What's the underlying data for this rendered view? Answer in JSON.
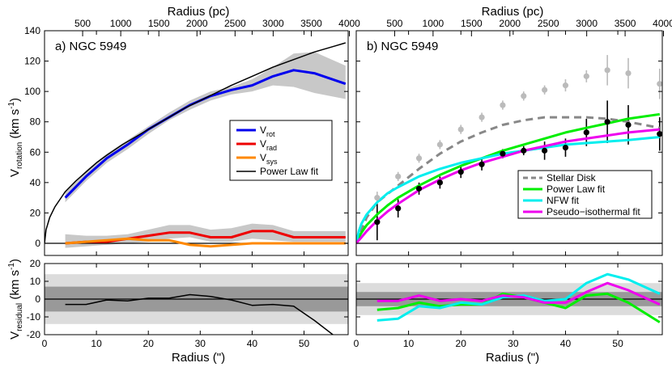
{
  "figure": {
    "xlabel": "Radius (\")",
    "toplabel": "Radius (pc)",
    "ylabel_top": {
      "base": "V",
      "sub": "rotation",
      "unit": " (km s",
      "sup": "-1",
      "close": ")"
    },
    "ylabel_bottom": {
      "base": "V",
      "sub": "residual",
      "unit": " (km s",
      "sup": "-1",
      "close": ")"
    }
  },
  "chart_data": [
    {
      "panel": "a",
      "type": "line",
      "title": "a)  NGC 5949",
      "xlabel": "Radius (\")",
      "ylabel": "V_rotation (km s^-1)",
      "xlim": [
        0,
        58.5
      ],
      "ylim": [
        -8,
        140
      ],
      "xticks": [
        0,
        10,
        20,
        30,
        40,
        50
      ],
      "yticks": [
        0,
        20,
        40,
        60,
        80,
        100,
        120,
        140
      ],
      "top_axis": {
        "label": "Radius (pc)",
        "ticks": [
          500,
          1000,
          1500,
          2000,
          2500,
          3000,
          3500,
          4000
        ],
        "pc_per_arcsec": 68.1
      },
      "legend": {
        "position": "center-right",
        "entries": [
          {
            "label": "V",
            "sub": "rot",
            "color": "#0000ee"
          },
          {
            "label": "V",
            "sub": "rad",
            "color": "#ee0000"
          },
          {
            "label": "V",
            "sub": "sys",
            "color": "#ff8800"
          },
          {
            "label": "Power Law fit",
            "sub": "",
            "color": "#000000"
          }
        ]
      },
      "bands": [
        {
          "name": "vrot-band",
          "color": "#c8c8c8",
          "x": [
            4,
            8,
            12,
            16,
            20,
            24,
            28,
            32,
            36,
            40,
            44,
            48,
            52,
            58
          ],
          "lower": [
            27,
            41,
            53,
            62,
            72,
            81,
            88,
            94,
            98,
            100,
            104,
            103,
            99,
            95
          ],
          "upper": [
            34,
            48,
            59,
            68,
            77,
            86,
            94,
            100,
            103,
            108,
            116,
            125,
            126,
            117
          ]
        },
        {
          "name": "vrad-band",
          "color": "#c8c8c8",
          "x": [
            4,
            8,
            12,
            16,
            20,
            24,
            28,
            32,
            36,
            40,
            44,
            48,
            52,
            58
          ],
          "lower": [
            -3,
            -2,
            -1,
            0,
            1,
            3,
            4,
            1,
            1,
            3,
            2,
            1,
            1,
            1
          ],
          "upper": [
            6,
            5,
            5,
            6,
            9,
            12,
            12,
            9,
            10,
            13,
            12,
            8,
            8,
            8
          ]
        }
      ],
      "series": [
        {
          "name": "V_rot",
          "color": "#0000ee",
          "width": 3,
          "x": [
            4,
            8,
            12,
            16,
            20,
            24,
            28,
            32,
            36,
            40,
            44,
            48,
            52,
            58
          ],
          "y": [
            30,
            44,
            56,
            65,
            75,
            83,
            91,
            97,
            101,
            104,
            110,
            114,
            112,
            105
          ]
        },
        {
          "name": "V_rad",
          "color": "#ee0000",
          "width": 3,
          "x": [
            4,
            8,
            12,
            16,
            20,
            24,
            28,
            32,
            36,
            40,
            44,
            48,
            52,
            58
          ],
          "y": [
            0,
            1,
            1,
            3,
            5,
            7,
            7,
            4,
            4,
            8,
            8,
            4,
            4,
            4
          ]
        },
        {
          "name": "V_sys",
          "color": "#ff8800",
          "width": 3,
          "x": [
            4,
            8,
            12,
            16,
            20,
            24,
            28,
            32,
            36,
            40,
            44,
            48,
            52,
            58
          ],
          "y": [
            0,
            1,
            2,
            3,
            2,
            2,
            -1,
            -2,
            -1,
            0,
            0,
            0,
            0,
            0
          ]
        },
        {
          "name": "Power Law fit",
          "color": "#000000",
          "width": 1.5,
          "x": [
            0,
            0.3,
            1,
            2,
            3,
            4,
            6,
            8,
            10,
            12,
            15,
            18,
            21,
            24,
            27,
            30,
            33,
            36,
            40,
            44,
            48,
            52,
            56,
            58
          ],
          "y": [
            0,
            9,
            17,
            24,
            29,
            34,
            41,
            47,
            53,
            58,
            65,
            71,
            77,
            83,
            89,
            94,
            99,
            104,
            110,
            116,
            121,
            126,
            130,
            132
          ]
        }
      ],
      "hlines": [
        0
      ]
    },
    {
      "panel": "b",
      "type": "line",
      "title": "b)  NGC 5949",
      "xlabel": "Radius (\")",
      "xlim": [
        0,
        58.5
      ],
      "ylim": [
        -8,
        140
      ],
      "xticks": [
        0,
        10,
        20,
        30,
        40,
        50
      ],
      "yticks": [
        0,
        20,
        40,
        60,
        80,
        100,
        120,
        140
      ],
      "top_axis": {
        "label": "Radius (pc)",
        "ticks": [
          500,
          1000,
          1500,
          2000,
          2500,
          3000,
          3500,
          4000
        ],
        "pc_per_arcsec": 68.1
      },
      "legend": {
        "position": "lower-right",
        "entries": [
          {
            "label": "Stellar Disk",
            "color": "#888888",
            "dash": true
          },
          {
            "label": "Power Law fit",
            "color": "#00ee00",
            "dash": false
          },
          {
            "label": "NFW fit",
            "color": "#00eeee",
            "dash": false
          },
          {
            "label": "Pseudo−isothermal fit",
            "color": "#ee00ee",
            "dash": false
          }
        ]
      },
      "series": [
        {
          "name": "Stellar Disk",
          "color": "#888888",
          "width": 3,
          "dash": true,
          "x": [
            0,
            2,
            4,
            8,
            12,
            16,
            20,
            24,
            28,
            32,
            36,
            40,
            44,
            48,
            52,
            58
          ],
          "y": [
            0,
            17,
            27,
            38,
            49,
            59,
            67,
            73,
            78,
            81,
            83,
            83,
            83,
            82,
            80,
            76
          ]
        },
        {
          "name": "Power Law fit",
          "color": "#00ee00",
          "width": 3,
          "x": [
            0,
            0.5,
            1,
            2,
            4,
            6,
            8,
            12,
            16,
            20,
            24,
            28,
            32,
            36,
            40,
            44,
            48,
            52,
            58
          ],
          "y": [
            0,
            4,
            7,
            12,
            19,
            25,
            30,
            38,
            45,
            51,
            56,
            61,
            65,
            69,
            73,
            76,
            79,
            82,
            85
          ]
        },
        {
          "name": "NFW fit",
          "color": "#00eeee",
          "width": 3,
          "x": [
            0,
            0.5,
            1,
            2,
            4,
            6,
            8,
            12,
            16,
            20,
            24,
            28,
            32,
            36,
            40,
            44,
            48,
            52,
            58
          ],
          "y": [
            0,
            8,
            13,
            19,
            27,
            33,
            37,
            44,
            49,
            53,
            56,
            59,
            61,
            63,
            65,
            66,
            67,
            68,
            70
          ]
        },
        {
          "name": "Pseudo-isothermal fit",
          "color": "#ee00ee",
          "width": 3,
          "x": [
            0,
            0.5,
            1,
            2,
            4,
            6,
            8,
            12,
            16,
            20,
            24,
            28,
            32,
            36,
            40,
            44,
            48,
            52,
            58
          ],
          "y": [
            0,
            2,
            4,
            8,
            15,
            21,
            26,
            35,
            42,
            48,
            53,
            57,
            61,
            64,
            67,
            69,
            71,
            73,
            75
          ]
        }
      ],
      "points": [
        {
          "name": "observed-rotation",
          "color": "#bbbbbb",
          "x": [
            4,
            8,
            12,
            16,
            20,
            24,
            28,
            32,
            36,
            40,
            44,
            48,
            52,
            58
          ],
          "y": [
            30,
            44,
            56,
            65,
            75,
            83,
            91,
            97,
            101,
            104,
            110,
            114,
            112,
            105
          ],
          "err": [
            4,
            3,
            3,
            3,
            3,
            3,
            3,
            3,
            3,
            4,
            4,
            10,
            10,
            10
          ]
        },
        {
          "name": "derived-velocity",
          "color": "#000000",
          "x": [
            4,
            8,
            12,
            16,
            20,
            24,
            28,
            32,
            36,
            40,
            44,
            48,
            52,
            58
          ],
          "y": [
            14,
            23,
            36,
            40,
            47,
            52,
            59,
            61,
            61,
            63,
            73,
            80,
            78,
            72
          ],
          "err": [
            12,
            6,
            4,
            4,
            4,
            4,
            3,
            3,
            6,
            6,
            9,
            14,
            13,
            11
          ]
        }
      ],
      "hlines": [
        0
      ]
    },
    {
      "panel": "a-residual",
      "type": "line",
      "xlabel": "Radius (\")",
      "ylabel": "V_residual (km s^-1)",
      "xlim": [
        0,
        58.5
      ],
      "ylim": [
        -20,
        20
      ],
      "xticks": [
        0,
        10,
        20,
        30,
        40,
        50
      ],
      "yticks": [
        -20,
        -10,
        0,
        10,
        20
      ],
      "bands": [
        {
          "name": "outer-band",
          "color": "#dcdcdc",
          "lower": -14,
          "upper": 14
        },
        {
          "name": "inner-band",
          "color": "#999999",
          "lower": -7,
          "upper": 7
        }
      ],
      "series": [
        {
          "name": "Power Law residual",
          "color": "#000000",
          "width": 1.5,
          "x": [
            4,
            8,
            12,
            16,
            20,
            24,
            28,
            32,
            36,
            40,
            44,
            48,
            52,
            56
          ],
          "y": [
            -3,
            -3,
            -0.5,
            -1,
            0.5,
            0.5,
            2.5,
            1.5,
            -0.5,
            -3.5,
            -3,
            -4,
            -12,
            -21
          ]
        }
      ],
      "hlines": [
        0
      ]
    },
    {
      "panel": "b-residual",
      "type": "line",
      "xlabel": "Radius (\")",
      "xlim": [
        0,
        58.5
      ],
      "ylim": [
        -20,
        20
      ],
      "xticks": [
        0,
        10,
        20,
        30,
        40,
        50
      ],
      "yticks": [
        -20,
        -10,
        0,
        10,
        20
      ],
      "bands": [
        {
          "name": "outer-band",
          "color": "#dcdcdc",
          "lower": -9,
          "upper": 9
        },
        {
          "name": "inner-band",
          "color": "#999999",
          "lower": -4,
          "upper": 4
        }
      ],
      "series": [
        {
          "name": "Power Law residual",
          "color": "#00ee00",
          "width": 3,
          "x": [
            4,
            8,
            12,
            16,
            20,
            24,
            28,
            32,
            36,
            40,
            44,
            48,
            52,
            58
          ],
          "y": [
            -6,
            -5,
            -2,
            -4,
            -3,
            -3,
            3,
            1,
            -2,
            -5,
            2,
            3,
            -2,
            -13
          ]
        },
        {
          "name": "NFW residual",
          "color": "#00eeee",
          "width": 3,
          "x": [
            4,
            8,
            12,
            16,
            20,
            24,
            28,
            32,
            36,
            40,
            44,
            48,
            52,
            58
          ],
          "y": [
            -12,
            -11,
            -4,
            -5,
            -2,
            -3,
            1,
            2,
            -1,
            0,
            9,
            14,
            11,
            3
          ]
        },
        {
          "name": "Pseudo-isothermal residual",
          "color": "#ee00ee",
          "width": 3,
          "x": [
            4,
            8,
            12,
            16,
            20,
            24,
            28,
            32,
            36,
            40,
            44,
            48,
            52,
            58
          ],
          "y": [
            -1,
            -1,
            2,
            -1,
            0,
            -1,
            2,
            1,
            -2,
            -2,
            4,
            9,
            5,
            -3
          ]
        }
      ],
      "hlines": [
        0
      ]
    }
  ]
}
